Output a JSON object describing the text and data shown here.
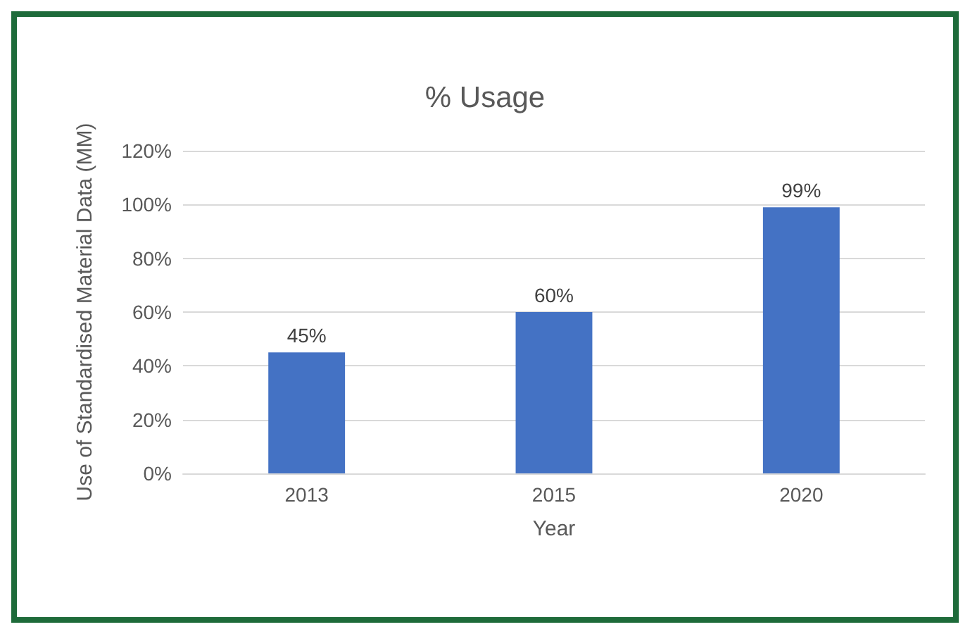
{
  "chart_data": {
    "type": "bar",
    "title": "% Usage",
    "xlabel": "Year",
    "ylabel": "Use of Standardised Material Data (MM)",
    "categories": [
      "2013",
      "2015",
      "2020"
    ],
    "values": [
      45,
      60,
      99
    ],
    "value_labels": [
      "45%",
      "60%",
      "99%"
    ],
    "color": "#4472c4",
    "ylim": [
      0,
      120
    ],
    "yticks": [
      {
        "value": 0,
        "label": "0%"
      },
      {
        "value": 20,
        "label": "20%"
      },
      {
        "value": 40,
        "label": "40%"
      },
      {
        "value": 60,
        "label": "60%"
      },
      {
        "value": 80,
        "label": "80%"
      },
      {
        "value": 100,
        "label": "100%"
      },
      {
        "value": 120,
        "label": "120%"
      }
    ],
    "grid": "y"
  }
}
